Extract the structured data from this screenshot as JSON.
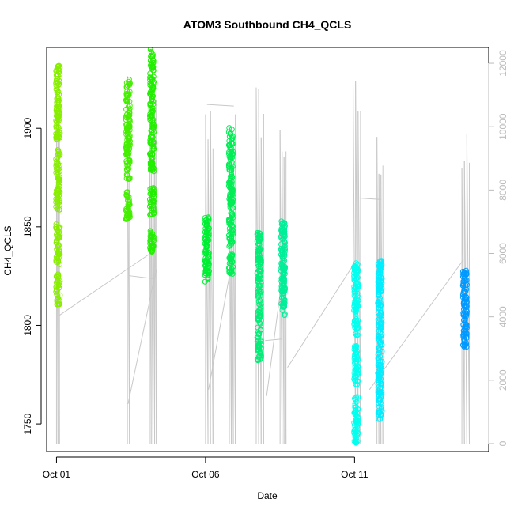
{
  "chart_data": {
    "type": "scatter",
    "title": "ATOM3 Southbound CH4_QCLS",
    "xlabel": "Date",
    "ylabel": "CH4_QCLS",
    "x_ticks": [
      "Oct 01",
      "Oct 06",
      "Oct 11"
    ],
    "x_tick_days": [
      1,
      6,
      11
    ],
    "xlim_days": [
      0.67,
      15.5
    ],
    "y_ticks": [
      1750,
      1800,
      1850,
      1900
    ],
    "ylim": [
      1736,
      1941
    ],
    "y2_ticks": [
      0,
      2000,
      4000,
      6000,
      8000,
      10000,
      12000
    ],
    "y2lim": [
      -250,
      12500
    ],
    "y2_color": "#bbbbbb",
    "grid": false,
    "series": [
      {
        "day": 1.05,
        "color": "#88ee00",
        "ymin": 1810,
        "ymax": 1932,
        "gaps": [
          [
            1826,
            1830
          ],
          [
            1852,
            1858
          ],
          [
            1890,
            1894
          ]
        ]
      },
      {
        "day": 3.4,
        "color": "#44ee00",
        "ymin": 1853,
        "ymax": 1925,
        "gaps": [
          [
            1868,
            1874
          ]
        ]
      },
      {
        "day": 4.2,
        "color": "#22ee00",
        "ymin": 1837,
        "ymax": 1940,
        "gaps": [
          [
            1848,
            1856
          ],
          [
            1870,
            1878
          ]
        ]
      },
      {
        "day": 6.05,
        "color": "#00ee33",
        "ymin": 1822,
        "ymax": 1855,
        "gaps": []
      },
      {
        "day": 6.85,
        "color": "#00ee55",
        "ymin": 1826,
        "ymax": 1901,
        "gaps": [
          [
            1836,
            1840
          ]
        ]
      },
      {
        "day": 7.8,
        "color": "#00ee77",
        "ymin": 1782,
        "ymax": 1847,
        "gaps": []
      },
      {
        "day": 8.6,
        "color": "#00ee99",
        "ymin": 1805,
        "ymax": 1853,
        "gaps": []
      },
      {
        "day": 11.05,
        "color": "#00ffee",
        "ymin": 1740,
        "ymax": 1832,
        "gaps": [
          [
            1764,
            1770
          ],
          [
            1790,
            1795
          ]
        ]
      },
      {
        "day": 11.85,
        "color": "#00eeff",
        "ymin": 1752,
        "ymax": 1833,
        "gaps": []
      },
      {
        "day": 14.7,
        "color": "#0099ff",
        "ymin": 1788,
        "ymax": 1828,
        "gaps": []
      }
    ],
    "altitude_track": {
      "color": "#c8c8c8",
      "flights": [
        {
          "start": 1.0,
          "end": 1.1,
          "peak": 11800,
          "spikes": 3
        },
        {
          "start": 3.38,
          "end": 3.45,
          "peak": 11600,
          "spikes": 2
        },
        {
          "start": 4.12,
          "end": 4.35,
          "peak": 11200,
          "spikes": 5
        },
        {
          "start": 6.0,
          "end": 6.25,
          "peak": 10900,
          "spikes": 4
        },
        {
          "start": 6.8,
          "end": 7.0,
          "peak": 10800,
          "spikes": 4
        },
        {
          "start": 7.7,
          "end": 7.95,
          "peak": 11500,
          "spikes": 4
        },
        {
          "start": 8.5,
          "end": 8.7,
          "peak": 10400,
          "spikes": 4
        },
        {
          "start": 10.95,
          "end": 11.2,
          "peak": 11700,
          "spikes": 4
        },
        {
          "start": 11.75,
          "end": 11.95,
          "peak": 10000,
          "spikes": 4
        },
        {
          "start": 14.6,
          "end": 14.85,
          "peak": 9800,
          "spikes": 4
        }
      ],
      "connectors": [
        {
          "x1": 1.1,
          "y1": 4050,
          "x2": 4.15,
          "y2": 6000
        },
        {
          "x1": 3.4,
          "y1": 1250,
          "x2": 4.35,
          "y2": 5500
        },
        {
          "x1": 4.3,
          "y1": 5200,
          "x2": 3.42,
          "y2": 5300
        },
        {
          "x1": 6.1,
          "y1": 1700,
          "x2": 6.9,
          "y2": 5800
        },
        {
          "x1": 6.05,
          "y1": 10700,
          "x2": 6.95,
          "y2": 10650
        },
        {
          "x1": 8.05,
          "y1": 1500,
          "x2": 8.65,
          "y2": 5800
        },
        {
          "x1": 8.0,
          "y1": 3250,
          "x2": 8.55,
          "y2": 3300
        },
        {
          "x1": 11.1,
          "y1": 7750,
          "x2": 11.9,
          "y2": 7700
        },
        {
          "x1": 11.5,
          "y1": 1700,
          "x2": 14.65,
          "y2": 5800
        },
        {
          "x1": 8.75,
          "y1": 2400,
          "x2": 11.0,
          "y2": 5700
        }
      ]
    }
  }
}
